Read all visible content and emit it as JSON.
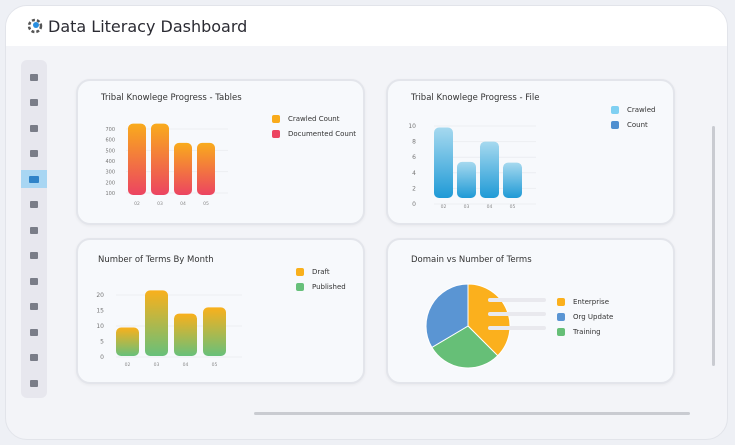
{
  "header": {
    "title": "Data Literacy Dashboard",
    "logo_icon": "gear-chart-icon"
  },
  "sidebar": {
    "items": [
      {
        "icon": "home-icon"
      },
      {
        "icon": "database-icon"
      },
      {
        "icon": "book-icon"
      },
      {
        "icon": "note-icon"
      },
      {
        "icon": "id-card-icon",
        "active": true
      },
      {
        "icon": "clipboard-icon"
      },
      {
        "icon": "bank-icon"
      },
      {
        "icon": "chart-icon"
      },
      {
        "icon": "folder-icon"
      },
      {
        "icon": "table-icon"
      },
      {
        "icon": "hourglass-icon"
      },
      {
        "icon": "tools-icon"
      },
      {
        "icon": "user-settings-icon"
      }
    ],
    "active_color": "#a8d6f3"
  },
  "chart_data": [
    {
      "type": "bar",
      "title": "Tribal Knowlege Progress - Tables",
      "categories": [
        "02",
        "03",
        "04",
        "05"
      ],
      "yticks": [
        "100",
        "200",
        "300",
        "400",
        "500",
        "600",
        "700"
      ],
      "ylim": [
        100,
        700
      ],
      "series": [
        {
          "name": "Crawled Count",
          "color": "#f9ab1c"
        },
        {
          "name": "Documented Count",
          "color": "#ec4461"
        }
      ],
      "values": [
        750,
        750,
        570,
        570
      ],
      "legend": "right"
    },
    {
      "type": "bar",
      "title": "Tribal Knowlege Progress - File",
      "categories": [
        "02",
        "03",
        "04",
        "05"
      ],
      "yticks": [
        "0",
        "2",
        "4",
        "6",
        "8",
        "10"
      ],
      "ylim": [
        0,
        10
      ],
      "series": [
        {
          "name": "Crawled",
          "color": "#7fd0f2"
        },
        {
          "name": "Count",
          "color": "#4f8fd0"
        }
      ],
      "values": [
        9.8,
        5.4,
        8,
        5.3
      ],
      "legend": "right"
    },
    {
      "type": "bar",
      "title": "Number of Terms By Month",
      "categories": [
        "02",
        "03",
        "04",
        "05"
      ],
      "yticks": [
        "0",
        "5",
        "10",
        "15",
        "20"
      ],
      "ylim": [
        0,
        20
      ],
      "series": [
        {
          "name": "Draft",
          "color": "#f9b01c"
        },
        {
          "name": "Published",
          "color": "#67c07a"
        }
      ],
      "values": [
        9.5,
        21.5,
        14,
        16
      ],
      "legend": "right"
    },
    {
      "type": "pie",
      "title": "Domain vs Number of Terms",
      "slices": [
        {
          "name": "Enterprise",
          "value": 37.5,
          "color": "#fbb01d"
        },
        {
          "name": "Training",
          "value": 29,
          "color": "#66bf77"
        },
        {
          "name": "Org Update",
          "value": 33.5,
          "color": "#5a95d3"
        }
      ],
      "legend_order": [
        "Enterprise",
        "Org Update",
        "Training"
      ],
      "legend": "right"
    }
  ]
}
